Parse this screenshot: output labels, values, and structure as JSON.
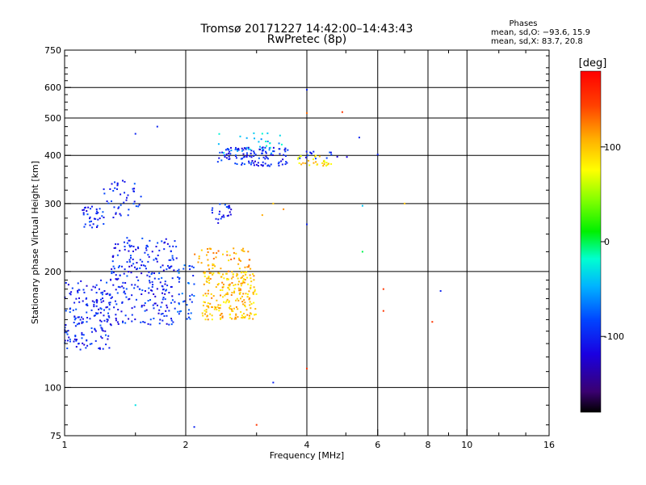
{
  "chart_data": {
    "type": "scatter",
    "title": "Tromsø 20171227 14:42:00–14:43:43",
    "subtitle": "RwPretec (8p)",
    "xlabel": "Frequency [MHz]",
    "ylabel": "Stationary phase Virtual Height [km]",
    "xscale": "log",
    "yscale": "log",
    "xlim": [
      1,
      16
    ],
    "ylim": [
      75,
      750
    ],
    "xticks": [
      1,
      2,
      4,
      6,
      8,
      10,
      16
    ],
    "yticks": [
      75,
      100,
      200,
      300,
      400,
      500,
      600,
      750
    ],
    "x_gridlines": [
      2,
      4,
      6,
      8,
      10
    ],
    "y_gridlines": [
      100,
      200,
      300,
      400,
      500,
      600
    ],
    "grid": true,
    "phase_stats": {
      "heading": "Phases",
      "o_line": "mean, sd,O: −93.6, 15.9",
      "x_line": "mean, sd,X:  83.7, 20.8"
    },
    "colorbar": {
      "label": "[deg]",
      "range": [
        -180,
        180
      ],
      "ticks": [
        100,
        0,
        -100
      ],
      "scheme": "rainbow"
    },
    "clusters": [
      {
        "x": [
          1.0,
          1.3
        ],
        "y": [
          125,
          190
        ],
        "phase": -100,
        "n": 170
      },
      {
        "x": [
          1.3,
          1.9
        ],
        "y": [
          145,
          245
        ],
        "phase": -100,
        "n": 260
      },
      {
        "x": [
          1.1,
          1.25
        ],
        "y": [
          260,
          295
        ],
        "phase": -100,
        "n": 35
      },
      {
        "x": [
          1.25,
          1.55
        ],
        "y": [
          275,
          345
        ],
        "phase": -100,
        "n": 45
      },
      {
        "x": [
          1.9,
          2.1
        ],
        "y": [
          150,
          210
        ],
        "phase": -80,
        "n": 40
      },
      {
        "x": [
          2.2,
          3.0
        ],
        "y": [
          150,
          200
        ],
        "phase": 100,
        "n": 230
      },
      {
        "x": [
          2.1,
          2.9
        ],
        "y": [
          200,
          230
        ],
        "phase": 110,
        "n": 55
      },
      {
        "x": [
          2.3,
          2.6
        ],
        "y": [
          260,
          300
        ],
        "phase": -100,
        "n": 25
      },
      {
        "x": [
          2.4,
          3.6
        ],
        "y": [
          375,
          420
        ],
        "phase": -100,
        "n": 120
      },
      {
        "x": [
          2.4,
          3.5
        ],
        "y": [
          400,
          460
        ],
        "phase": -40,
        "n": 30
      },
      {
        "x": [
          3.8,
          4.6
        ],
        "y": [
          375,
          400
        ],
        "phase": 90,
        "n": 30
      },
      {
        "x": [
          3.8,
          5.2
        ],
        "y": [
          390,
          410
        ],
        "phase": -100,
        "n": 15
      }
    ],
    "outliers": [
      {
        "x": 1.5,
        "y": 455,
        "phase": -100
      },
      {
        "x": 1.7,
        "y": 475,
        "phase": -100
      },
      {
        "x": 1.5,
        "y": 90,
        "phase": -30
      },
      {
        "x": 2.1,
        "y": 79,
        "phase": -100
      },
      {
        "x": 3.0,
        "y": 80,
        "phase": 150
      },
      {
        "x": 3.3,
        "y": 103,
        "phase": -100
      },
      {
        "x": 4.0,
        "y": 112,
        "phase": 150
      },
      {
        "x": 4.0,
        "y": 592,
        "phase": -100
      },
      {
        "x": 4.0,
        "y": 265,
        "phase": -100
      },
      {
        "x": 4.0,
        "y": 515,
        "phase": 130
      },
      {
        "x": 4.9,
        "y": 518,
        "phase": 150
      },
      {
        "x": 5.4,
        "y": 445,
        "phase": -100
      },
      {
        "x": 5.5,
        "y": 296,
        "phase": -40
      },
      {
        "x": 5.5,
        "y": 225,
        "phase": 0
      },
      {
        "x": 6.2,
        "y": 180,
        "phase": 150
      },
      {
        "x": 6.2,
        "y": 158,
        "phase": 150
      },
      {
        "x": 6.0,
        "y": 402,
        "phase": -100
      },
      {
        "x": 7.0,
        "y": 300,
        "phase": 100
      },
      {
        "x": 8.2,
        "y": 148,
        "phase": 150
      },
      {
        "x": 8.6,
        "y": 178,
        "phase": -100
      },
      {
        "x": 3.3,
        "y": 300,
        "phase": 100
      },
      {
        "x": 3.5,
        "y": 290,
        "phase": 120
      },
      {
        "x": 3.1,
        "y": 280,
        "phase": 110
      }
    ]
  }
}
